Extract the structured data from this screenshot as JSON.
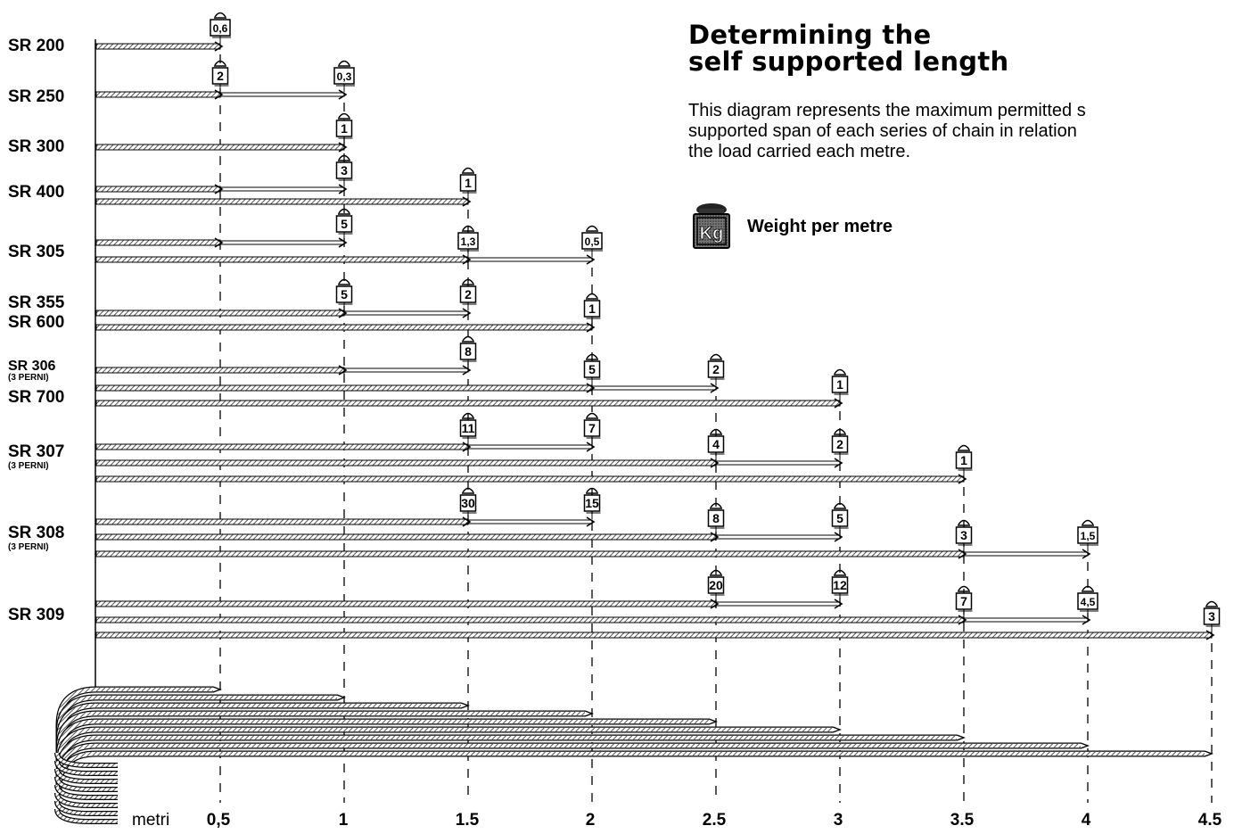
{
  "title": {
    "line1": "Determining the",
    "line2": "self supported length"
  },
  "description": {
    "line1": "This diagram represents the maximum permitted s",
    "line2": "supported span of each series of chain in relation",
    "line3": "the load carried each metre."
  },
  "legend": {
    "icon": "kg-weight-icon",
    "icon_text": "Kg",
    "label": "Weight per metre"
  },
  "axis": {
    "unit_label": "metri",
    "tick_labels": [
      "0,5",
      "1",
      "1.5",
      "2",
      "2.5",
      "3",
      "3.5",
      "4",
      "4.5"
    ],
    "tick_values": [
      0.5,
      1,
      1.5,
      2,
      2.5,
      3,
      3.5,
      4,
      4.5
    ]
  },
  "series_labels": [
    {
      "text": "SR 200"
    },
    {
      "text": "SR 250"
    },
    {
      "text": "SR 300"
    },
    {
      "text": "SR 400"
    },
    {
      "text": "SR 305"
    },
    {
      "text": "SR 355"
    },
    {
      "text": "SR 600"
    },
    {
      "text": "SR 306",
      "note": "(3 PERNI)"
    },
    {
      "text": "SR 700"
    },
    {
      "text": "SR 307",
      "note": "(3 PERNI)"
    },
    {
      "text": "SR 308",
      "note": "(3 PERNI)"
    },
    {
      "text": "SR 309"
    }
  ],
  "bars": [
    {
      "max_length_m": 0.5,
      "loads": [
        {
          "length_m": 0.5,
          "kg_per_m": "0,6"
        }
      ]
    },
    {
      "max_length_m": 1,
      "loads": [
        {
          "length_m": 0.5,
          "kg_per_m": "2"
        },
        {
          "length_m": 1,
          "kg_per_m": "0,3"
        }
      ]
    },
    {
      "max_length_m": 1,
      "loads": [
        {
          "length_m": 1,
          "kg_per_m": "1"
        }
      ]
    },
    {
      "max_length_m": 1,
      "loads": [
        {
          "length_m": 0.5,
          "kg_per_m": ""
        },
        {
          "length_m": 1,
          "kg_per_m": "3"
        }
      ]
    },
    {
      "max_length_m": 1.5,
      "loads": [
        {
          "length_m": 1.5,
          "kg_per_m": "1"
        }
      ]
    },
    {
      "max_length_m": 1,
      "loads": [
        {
          "length_m": 0.5,
          "kg_per_m": ""
        },
        {
          "length_m": 1,
          "kg_per_m": "5"
        }
      ]
    },
    {
      "max_length_m": 2,
      "loads": [
        {
          "length_m": 1.5,
          "kg_per_m": "1,3"
        },
        {
          "length_m": 2,
          "kg_per_m": "0,5"
        }
      ]
    },
    {
      "max_length_m": 2,
      "loads": [
        {
          "length_m": 1,
          "kg_per_m": "5"
        },
        {
          "length_m": 1.5,
          "kg_per_m": "2"
        }
      ]
    },
    {
      "max_length_m": 2,
      "loads": [
        {
          "length_m": 2,
          "kg_per_m": "1"
        }
      ]
    },
    {
      "max_length_m": 1.5,
      "loads": [
        {
          "length_m": 1,
          "kg_per_m": ""
        },
        {
          "length_m": 1.5,
          "kg_per_m": "8"
        }
      ]
    },
    {
      "max_length_m": 2.5,
      "loads": [
        {
          "length_m": 2,
          "kg_per_m": "5"
        },
        {
          "length_m": 2.5,
          "kg_per_m": "2"
        }
      ]
    },
    {
      "max_length_m": 3,
      "loads": [
        {
          "length_m": 3,
          "kg_per_m": "1"
        }
      ]
    },
    {
      "max_length_m": 2,
      "loads": [
        {
          "length_m": 1.5,
          "kg_per_m": "11"
        },
        {
          "length_m": 2,
          "kg_per_m": "7"
        }
      ]
    },
    {
      "max_length_m": 3,
      "loads": [
        {
          "length_m": 2.5,
          "kg_per_m": "4"
        },
        {
          "length_m": 3,
          "kg_per_m": "2"
        }
      ]
    },
    {
      "max_length_m": 3.5,
      "loads": [
        {
          "length_m": 3.5,
          "kg_per_m": "1"
        }
      ]
    },
    {
      "max_length_m": 2,
      "loads": [
        {
          "length_m": 1.5,
          "kg_per_m": "30"
        },
        {
          "length_m": 2,
          "kg_per_m": "15"
        }
      ]
    },
    {
      "max_length_m": 3,
      "loads": [
        {
          "length_m": 2.5,
          "kg_per_m": "8"
        },
        {
          "length_m": 3,
          "kg_per_m": "5"
        }
      ]
    },
    {
      "max_length_m": 4,
      "loads": [
        {
          "length_m": 3.5,
          "kg_per_m": "3"
        },
        {
          "length_m": 4,
          "kg_per_m": "1,5"
        }
      ]
    },
    {
      "max_length_m": 3,
      "loads": [
        {
          "length_m": 2.5,
          "kg_per_m": "20"
        },
        {
          "length_m": 3,
          "kg_per_m": "12"
        }
      ]
    },
    {
      "max_length_m": 4,
      "loads": [
        {
          "length_m": 3.5,
          "kg_per_m": "7"
        },
        {
          "length_m": 4,
          "kg_per_m": "4,5"
        }
      ]
    },
    {
      "max_length_m": 4.5,
      "loads": [
        {
          "length_m": 4.5,
          "kg_per_m": "3"
        }
      ]
    }
  ],
  "colors": {
    "ink": "#000000",
    "paper": "#ffffff",
    "hatch": "#555555"
  }
}
